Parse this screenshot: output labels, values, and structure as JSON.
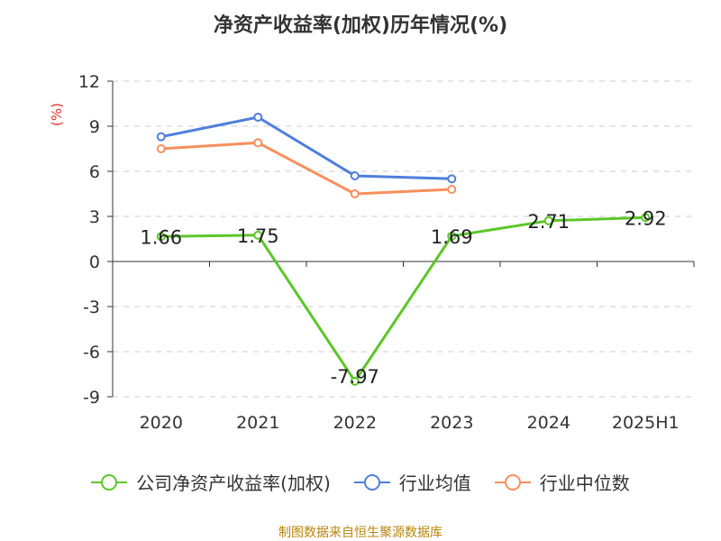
{
  "title": "净资产收益率(加权)历年情况(%)",
  "source": "制图数据来自恒生聚源数据库",
  "chart_data": {
    "type": "line",
    "title": "净资产收益率(加权)历年情况(%)",
    "ylabel": "(%)",
    "xlabel": "",
    "categories": [
      "2020",
      "2021",
      "2022",
      "2023",
      "2024",
      "2025H1"
    ],
    "ylim": [
      -9,
      12
    ],
    "yticks": [
      12,
      9,
      6,
      3,
      0,
      -3,
      -6,
      -9
    ],
    "ytick_labels": [
      "12",
      "9",
      "6",
      "3",
      "0",
      "-3",
      "-6",
      "-9"
    ],
    "grid": true,
    "legend_position": "bottom",
    "series": [
      {
        "name": "公司净资产收益率(加权)",
        "color": "#5cc628",
        "values": [
          1.66,
          1.75,
          -7.97,
          1.69,
          2.71,
          2.92
        ],
        "labels": [
          "1.66",
          "1.75",
          "-7.97",
          "1.69",
          "2.71",
          "2.92"
        ]
      },
      {
        "name": "行业均值",
        "color": "#4e7fdb",
        "values": [
          8.3,
          9.6,
          5.7,
          5.5,
          null,
          null
        ]
      },
      {
        "name": "行业中位数",
        "color": "#f7905c",
        "values": [
          7.5,
          7.9,
          4.5,
          4.8,
          null,
          null
        ]
      }
    ]
  }
}
